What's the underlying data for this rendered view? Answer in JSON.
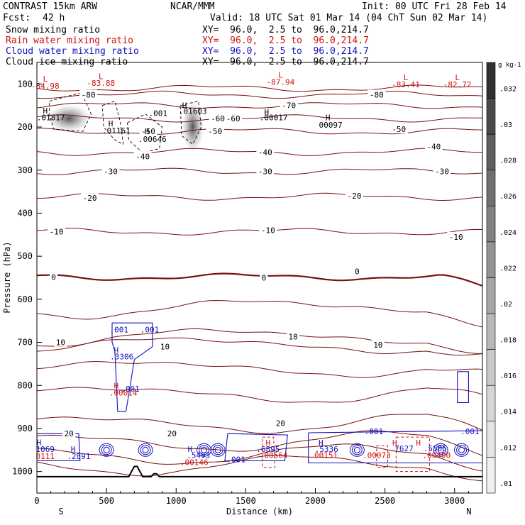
{
  "header": {
    "model": "CONTRAST 15km ARW",
    "org": "NCAR/MMM",
    "init": "Init: 00 UTC Fri 28 Feb 14",
    "fcst_label": "Fcst:",
    "fcst_value": "42 h",
    "valid": "Valid: 18 UTC Sat 01 Mar 14 (04 ChT Sun 02 Mar 14)"
  },
  "fields": [
    {
      "name": "Snow mixing ratio",
      "xy": "XY=  96.0,  2.5 to  96.0,214.7",
      "color": "#000000"
    },
    {
      "name": "Rain water mixing ratio",
      "xy": "XY=  96.0,  2.5 to  96.0,214.7",
      "color": "#d01010"
    },
    {
      "name": "Cloud water mixing ratio",
      "xy": "XY=  96.0,  2.5 to  96.0,214.7",
      "color": "#1010c0"
    },
    {
      "name": "Cloud ice mixing ratio",
      "xy": "XY=  96.0,  2.5 to  96.0,214.7",
      "color": "#000000"
    }
  ],
  "chart_data": {
    "type": "cross-section contour",
    "xlabel": "Distance (km)",
    "ylabel": "Pressure (hPa)",
    "xlim": [
      0,
      3200
    ],
    "ylim": [
      1050,
      50
    ],
    "x_ticks": [
      0,
      500,
      1000,
      1500,
      2000,
      2500,
      3000
    ],
    "y_ticks": [
      100,
      200,
      300,
      400,
      500,
      600,
      700,
      800,
      900,
      1000
    ],
    "end_labels": {
      "left": "S",
      "right": "N"
    },
    "colorbar": {
      "unit": "g kg-1",
      "ticks": [
        ".032",
        ".03",
        ".028",
        ".026",
        ".024",
        ".022",
        ".02",
        ".018",
        ".016",
        ".014",
        ".012",
        ".01"
      ],
      "colors": [
        "#303030",
        "#4a4a4a",
        "#5e5e5e",
        "#707070",
        "#828282",
        "#949494",
        "#a6a6a6",
        "#b8b8b8",
        "#c8c8c8",
        "#d6d6d6",
        "#e4e4e4",
        "#f0f0f0"
      ]
    },
    "temperature_labels": [
      {
        "t": "-80",
        "x": 370,
        "p": 125
      },
      {
        "t": "-80",
        "x": 2440,
        "p": 125
      },
      {
        "t": "-70",
        "x": 1810,
        "p": 150
      },
      {
        "t": "-60",
        "x": 1410,
        "p": 180
      },
      {
        "t": "-60",
        "x": 1300,
        "p": 180
      },
      {
        "t": "-50",
        "x": 800,
        "p": 210
      },
      {
        "t": "-50",
        "x": 1280,
        "p": 210
      },
      {
        "t": "-50",
        "x": 2600,
        "p": 205
      },
      {
        "t": "-40",
        "x": 1640,
        "p": 258
      },
      {
        "t": "-40",
        "x": 2850,
        "p": 245
      },
      {
        "t": "-40",
        "x": 760,
        "p": 268
      },
      {
        "t": "-30",
        "x": 530,
        "p": 303
      },
      {
        "t": "-30",
        "x": 1640,
        "p": 303
      },
      {
        "t": "-30",
        "x": 2910,
        "p": 303
      },
      {
        "t": "-20",
        "x": 380,
        "p": 365
      },
      {
        "t": "-20",
        "x": 2280,
        "p": 360
      },
      {
        "t": "-10",
        "x": 140,
        "p": 443
      },
      {
        "t": "-10",
        "x": 1660,
        "p": 440
      },
      {
        "t": "-10",
        "x": 3010,
        "p": 455
      },
      {
        "t": "0",
        "x": 120,
        "p": 548
      },
      {
        "t": "0",
        "x": 1630,
        "p": 550
      },
      {
        "t": "0",
        "x": 2300,
        "p": 535
      },
      {
        "t": "10",
        "x": 170,
        "p": 700
      },
      {
        "t": "10",
        "x": 920,
        "p": 710
      },
      {
        "t": "10",
        "x": 1840,
        "p": 687
      },
      {
        "t": "10",
        "x": 2450,
        "p": 706
      },
      {
        "t": "20",
        "x": 230,
        "p": 912
      },
      {
        "t": "20",
        "x": 970,
        "p": 912
      },
      {
        "t": "20",
        "x": 1750,
        "p": 888
      }
    ],
    "extrema_labels": [
      {
        "t": "L",
        "x": 60,
        "p": 88,
        "c": "#d01010"
      },
      {
        "t": "-84.98",
        "x": 60,
        "p": 104,
        "c": "#d01010"
      },
      {
        "t": "L",
        "x": 460,
        "p": 82,
        "c": "#d01010"
      },
      {
        "t": "-83.88",
        "x": 460,
        "p": 98,
        "c": "#d01010"
      },
      {
        "t": "L",
        "x": 1750,
        "p": 79,
        "c": "#d01010"
      },
      {
        "t": "-87.94",
        "x": 1750,
        "p": 95,
        "c": "#d01010"
      },
      {
        "t": "L",
        "x": 2650,
        "p": 85,
        "c": "#d01010"
      },
      {
        "t": "-83.41",
        "x": 2650,
        "p": 101,
        "c": "#d01010"
      },
      {
        "t": "L",
        "x": 3020,
        "p": 85,
        "c": "#d01010"
      },
      {
        "t": "-82.72",
        "x": 3020,
        "p": 101,
        "c": "#d01010"
      },
      {
        "t": "H",
        "x": 60,
        "p": 162,
        "c": "#000000"
      },
      {
        "t": ".01817",
        "x": 100,
        "p": 178,
        "c": "#000000"
      },
      {
        "t": "H",
        "x": 530,
        "p": 192,
        "c": "#000000"
      },
      {
        "t": ".01161",
        "x": 570,
        "p": 208,
        "c": "#000000"
      },
      {
        "t": "H",
        "x": 790,
        "p": 210,
        "c": "#000000"
      },
      {
        "t": ".00646",
        "x": 830,
        "p": 228,
        "c": "#000000"
      },
      {
        "t": ".001",
        "x": 870,
        "p": 168,
        "c": "#000000"
      },
      {
        "t": "H",
        "x": 1060,
        "p": 150,
        "c": "#000000"
      },
      {
        "t": ".01603",
        "x": 1120,
        "p": 163,
        "c": "#000000"
      },
      {
        "t": "H",
        "x": 1650,
        "p": 165,
        "c": "#000000"
      },
      {
        "t": ".00017",
        "x": 1700,
        "p": 178,
        "c": "#000000"
      },
      {
        "t": "H",
        "x": 2090,
        "p": 178,
        "c": "#000000"
      },
      {
        "t": "00097",
        "x": 2110,
        "p": 195,
        "c": "#000000"
      },
      {
        "t": ".001",
        "x": 590,
        "p": 670,
        "c": "#1010c0"
      },
      {
        "t": ".001",
        "x": 810,
        "p": 670,
        "c": "#1010c0"
      },
      {
        "t": "H",
        "x": 570,
        "p": 718,
        "c": "#1010c0"
      },
      {
        "t": ".3306",
        "x": 610,
        "p": 733,
        "c": "#1010c0"
      },
      {
        "t": "H",
        "x": 570,
        "p": 800,
        "c": "#d01010"
      },
      {
        "t": ".001",
        "x": 670,
        "p": 808,
        "c": "#1010c0"
      },
      {
        "t": ".00014",
        "x": 620,
        "p": 817,
        "c": "#d01010"
      },
      {
        "t": "H",
        "x": 15,
        "p": 932,
        "c": "#1010c0"
      },
      {
        "t": "1069",
        "x": 60,
        "p": 948,
        "c": "#1010c0"
      },
      {
        "t": "0111",
        "x": 60,
        "p": 964,
        "c": "#d01010"
      },
      {
        "t": "H",
        "x": 260,
        "p": 948,
        "c": "#1010c0"
      },
      {
        "t": ".2891",
        "x": 300,
        "p": 964,
        "c": "#1010c0"
      },
      {
        "t": "H",
        "x": 1100,
        "p": 948,
        "c": "#1010c0"
      },
      {
        "t": ".5493",
        "x": 1160,
        "p": 962,
        "c": "#1010c0"
      },
      {
        "t": ".00146",
        "x": 1130,
        "p": 978,
        "c": "#d01010"
      },
      {
        "t": ".001",
        "x": 1430,
        "p": 972,
        "c": "#1010c0"
      },
      {
        "t": "H",
        "x": 1660,
        "p": 933,
        "c": "#d01010"
      },
      {
        "t": ".6895",
        "x": 1660,
        "p": 948,
        "c": "#1010c0"
      },
      {
        "t": ".00564",
        "x": 1700,
        "p": 962,
        "c": "#d01010"
      },
      {
        "t": "H",
        "x": 2040,
        "p": 933,
        "c": "#1010c0"
      },
      {
        "t": ".5336",
        "x": 2080,
        "p": 948,
        "c": "#1010c0"
      },
      {
        "t": ".00151",
        "x": 2060,
        "p": 962,
        "c": "#d01010"
      },
      {
        "t": ".001",
        "x": 2420,
        "p": 907,
        "c": "#1010c0"
      },
      {
        "t": ".00073",
        "x": 2440,
        "p": 962,
        "c": "#d01010"
      },
      {
        "t": "H",
        "x": 2570,
        "p": 933,
        "c": "#d01010"
      },
      {
        "t": ".7627",
        "x": 2620,
        "p": 946,
        "c": "#1010c0"
      },
      {
        "t": "H",
        "x": 2740,
        "p": 933,
        "c": "#d01010"
      },
      {
        "t": ".5505",
        "x": 2860,
        "p": 946,
        "c": "#1010c0"
      },
      {
        "t": ".00490",
        "x": 2870,
        "p": 962,
        "c": "#d01010"
      },
      {
        "t": ".001",
        "x": 3110,
        "p": 907,
        "c": "#1010c0"
      }
    ]
  }
}
